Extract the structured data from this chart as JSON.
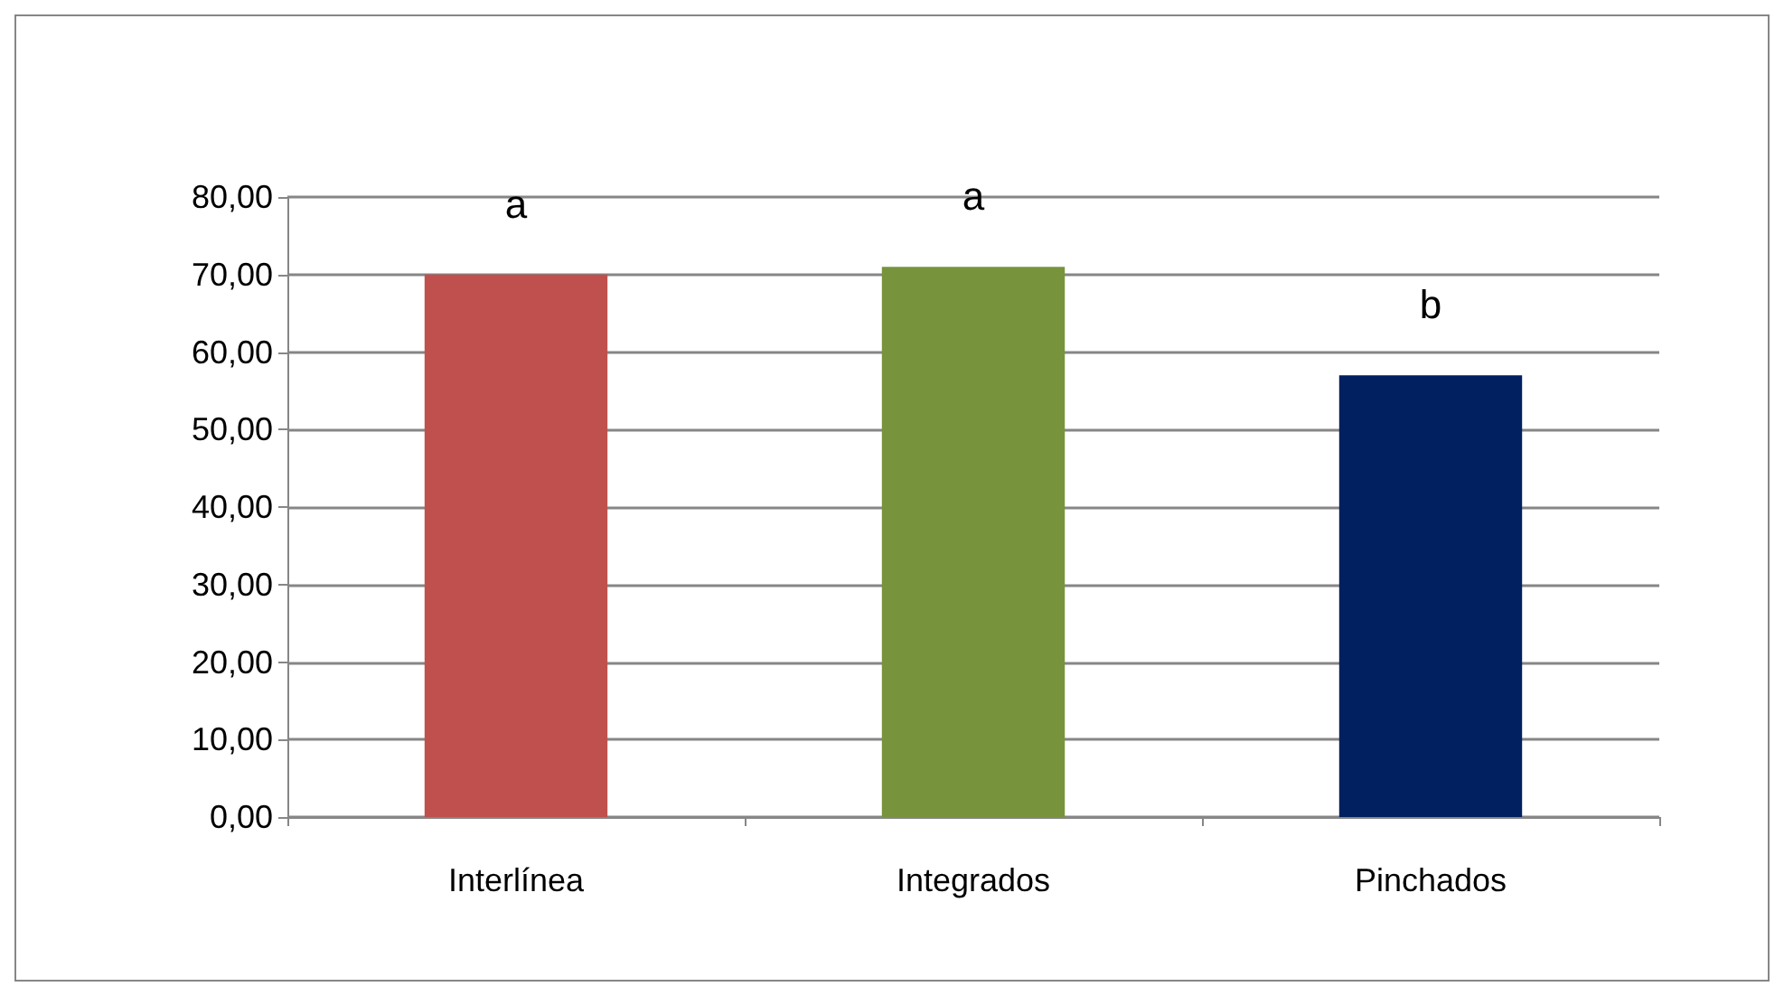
{
  "chart_data": {
    "type": "bar",
    "categories": [
      "Interlínea",
      "Integrados",
      "Pinchados"
    ],
    "values": [
      70,
      71,
      57
    ],
    "colors": [
      "#c0504d",
      "#77933c",
      "#002060"
    ],
    "ylim": [
      0,
      80
    ],
    "yticks": [
      {
        "value": 0,
        "label": "0,00"
      },
      {
        "value": 10,
        "label": "10,00"
      },
      {
        "value": 20,
        "label": "20,00"
      },
      {
        "value": 30,
        "label": "30,00"
      },
      {
        "value": 40,
        "label": "40,00"
      },
      {
        "value": 50,
        "label": "50,00"
      },
      {
        "value": 60,
        "label": "60,00"
      },
      {
        "value": 70,
        "label": "70,00"
      },
      {
        "value": 80,
        "label": "80,00"
      }
    ],
    "grid": "y",
    "annotations": [
      {
        "text": "a",
        "x": "Interlínea",
        "y": 70
      },
      {
        "text": "a",
        "x": "Integrados",
        "y": 71
      },
      {
        "text": "b",
        "x": "Pinchados",
        "y": 57
      }
    ]
  }
}
